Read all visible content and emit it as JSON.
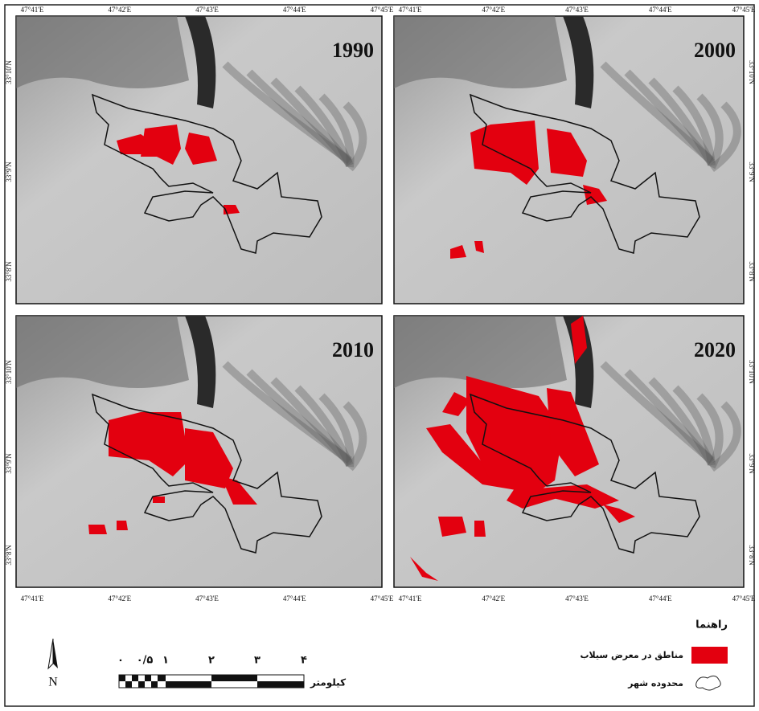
{
  "map": {
    "panels": [
      {
        "year": "1990"
      },
      {
        "year": "2000"
      },
      {
        "year": "2010"
      },
      {
        "year": "2020"
      }
    ],
    "lon_labels": [
      "47°41'E",
      "47°42'E",
      "47°43'E",
      "47°44'E",
      "47°45'E"
    ],
    "lat_labels": [
      "33°10'N",
      "33°9'N",
      "33°8'N"
    ],
    "legend_title": "راهنما",
    "legend_items": [
      "مناطق در معرض سیلاب",
      "محدوده شهر"
    ],
    "scale_labels": [
      "۰",
      "۰/۵",
      "۱",
      "۲",
      "۳",
      "۴"
    ],
    "scale_unit": "کیلومتر",
    "north": "N"
  }
}
